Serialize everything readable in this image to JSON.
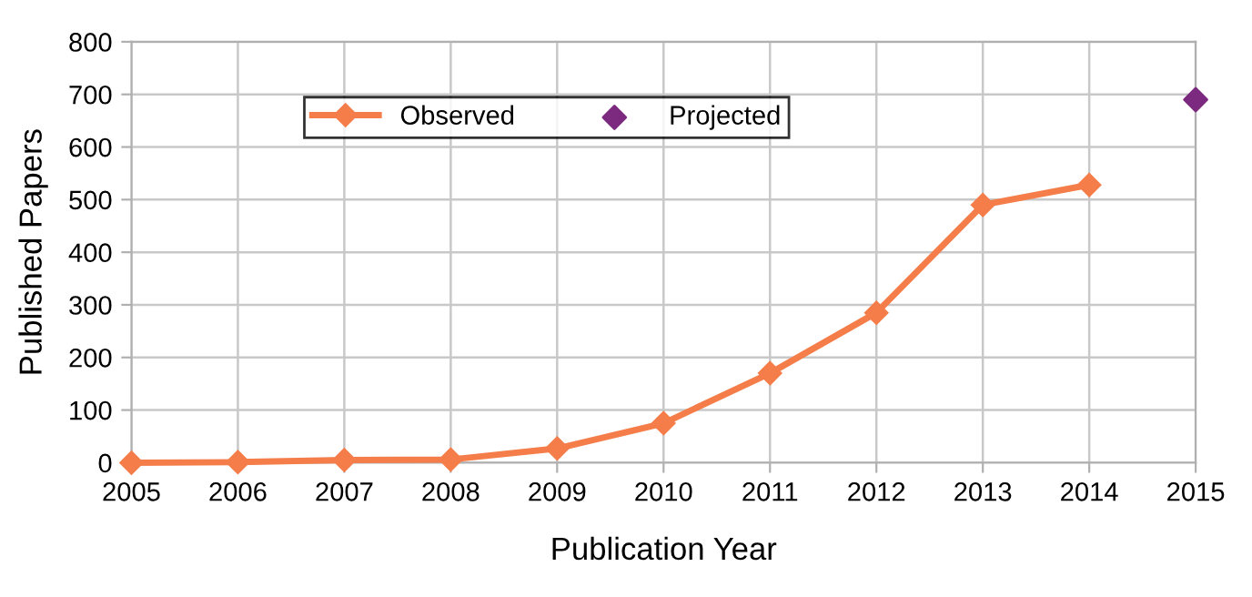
{
  "chart_data": {
    "type": "line",
    "xlabel": "Publication Year",
    "ylabel": "Published Papers",
    "series": [
      {
        "name": "Observed",
        "color": "#f47d4a",
        "x": [
          2005,
          2006,
          2007,
          2008,
          2009,
          2010,
          2011,
          2012,
          2013,
          2014
        ],
        "values": [
          0,
          1,
          5,
          6,
          27,
          75,
          170,
          285,
          490,
          528
        ]
      },
      {
        "name": "Projected",
        "type": "scatter",
        "color": "#7b2a7f",
        "x": [
          2015
        ],
        "values": [
          690
        ]
      }
    ],
    "xlim": [
      2005,
      2015
    ],
    "xticks": [
      2005,
      2006,
      2007,
      2008,
      2009,
      2010,
      2011,
      2012,
      2013,
      2014,
      2015
    ],
    "ylim": [
      0,
      800
    ],
    "yticks": [
      0,
      100,
      200,
      300,
      400,
      500,
      600,
      700,
      800
    ],
    "grid": true,
    "legend": "top left",
    "marker": "diamond",
    "line_style": "solid"
  }
}
